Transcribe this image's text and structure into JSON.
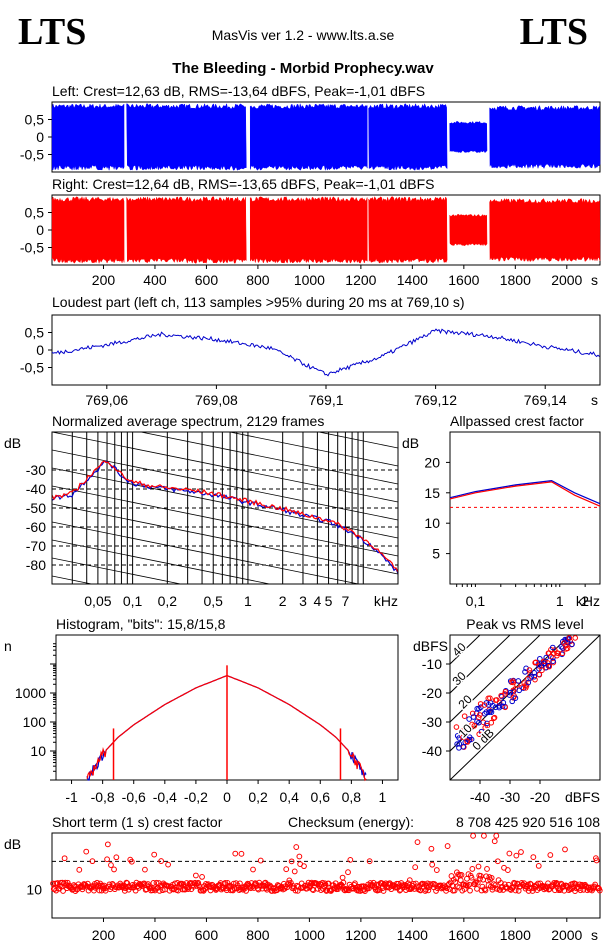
{
  "header": {
    "logo_left": "LTS",
    "logo_right": "LTS",
    "app_title": "MasVis ver 1.2 - www.lts.a.se",
    "file_title": "The Bleeding - Morbid Prophecy.wav"
  },
  "colors": {
    "left": "#0000ff",
    "right": "#ff0000",
    "overlay": "#0000cc"
  },
  "chart_data": [
    {
      "type": "area",
      "name": "left-waveform",
      "title": "Left: Crest=12,63 dB, RMS=-13,64 dBFS, Peak=-1,01 dBFS",
      "ylim": [
        -1,
        1
      ],
      "xlim": [
        0,
        2129
      ],
      "yticks": [
        0.5,
        0,
        -0.5
      ],
      "ytick_labels": [
        "0,5",
        "0",
        "-0,5"
      ],
      "envelope_segments": [
        {
          "x": [
            0,
            280
          ],
          "amp": 0.95
        },
        {
          "x": [
            290,
            755
          ],
          "amp": 0.95
        },
        {
          "x": [
            770,
            1225
          ],
          "amp": 0.95
        },
        {
          "x": [
            1230,
            1535
          ],
          "amp": 0.95
        },
        {
          "x": [
            1545,
            1690
          ],
          "amp": 0.45
        },
        {
          "x": [
            1700,
            2129
          ],
          "amp": 0.9
        }
      ]
    },
    {
      "type": "area",
      "name": "right-waveform",
      "title": "Right: Crest=12,64 dB, RMS=-13,65 dBFS, Peak=-1,01 dBFS",
      "ylim": [
        -1,
        1
      ],
      "xlim": [
        0,
        2129
      ],
      "yticks": [
        0.5,
        0,
        -0.5
      ],
      "ytick_labels": [
        "0,5",
        "0",
        "-0,5"
      ],
      "xticks": [
        200,
        400,
        600,
        800,
        1000,
        1200,
        1400,
        1600,
        1800,
        2000
      ],
      "xunit": "s",
      "envelope_segments": [
        {
          "x": [
            0,
            280
          ],
          "amp": 0.95
        },
        {
          "x": [
            290,
            755
          ],
          "amp": 0.95
        },
        {
          "x": [
            770,
            1225
          ],
          "amp": 0.95
        },
        {
          "x": [
            1230,
            1535
          ],
          "amp": 0.95
        },
        {
          "x": [
            1545,
            1690
          ],
          "amp": 0.45
        },
        {
          "x": [
            1700,
            2129
          ],
          "amp": 0.9
        }
      ]
    },
    {
      "type": "line",
      "name": "loudest-part",
      "title": "Loudest part (left  ch, 113 samples >95% during 20 ms at 769,10 s)",
      "xlim": [
        769.05,
        769.15
      ],
      "ylim": [
        -1,
        1
      ],
      "yticks": [
        0.5,
        0,
        -0.5
      ],
      "ytick_labels": [
        "0,5",
        "0",
        "-0,5"
      ],
      "xticks": [
        769.06,
        769.08,
        769.1,
        769.12,
        769.14
      ],
      "xtick_labels": [
        "769,06",
        "769,08",
        "769,1",
        "769,12",
        "769,14"
      ],
      "xunit": "s",
      "x": [
        769.05,
        769.06,
        769.07,
        769.08,
        769.09,
        769.1,
        769.11,
        769.12,
        769.13,
        769.14,
        769.15
      ],
      "y": [
        -0.1,
        0.15,
        0.45,
        0.3,
        0.05,
        -0.7,
        -0.2,
        0.55,
        0.4,
        0.1,
        -0.15
      ]
    },
    {
      "type": "line",
      "name": "average-spectrum",
      "title": "Normalized average spectrum, 2129 frames",
      "ylabel": "dB",
      "xunit": "kHz",
      "xscale": "log",
      "xlim": [
        0.02,
        20
      ],
      "ylim": [
        -90,
        -10
      ],
      "yticks": [
        -30,
        -40,
        -50,
        -60,
        -70,
        -80
      ],
      "xtick_labels": [
        "0,05",
        "0,1",
        "0,2",
        "0,5",
        "1",
        "2",
        "3",
        "4",
        "5",
        "7"
      ],
      "xticks": [
        0.05,
        0.1,
        0.2,
        0.5,
        1,
        2,
        3,
        4,
        5,
        7
      ],
      "x": [
        0.02,
        0.03,
        0.04,
        0.06,
        0.08,
        0.1,
        0.15,
        0.2,
        0.3,
        0.5,
        1,
        2,
        3,
        5,
        8,
        12,
        20
      ],
      "y": [
        -45,
        -43,
        -35,
        -25,
        -33,
        -37,
        -39,
        -40,
        -41,
        -43,
        -47,
        -51,
        -54,
        -57,
        -63,
        -70,
        -84
      ]
    },
    {
      "type": "line",
      "name": "allpassed-crest-factor",
      "title": "Allpassed crest factor",
      "ylabel": "dB",
      "xunit": "kHz",
      "xscale": "log",
      "xlim": [
        0.05,
        3
      ],
      "ylim": [
        0,
        25
      ],
      "yticks": [
        20,
        15,
        10,
        5
      ],
      "xticks": [
        0.1,
        1,
        2
      ],
      "xtick_labels": [
        "0,1",
        "1",
        "2"
      ],
      "reference_line": 12.6,
      "series": [
        {
          "name": "",
          "x": [
            0.05,
            0.1,
            0.3,
            0.8,
            1.5,
            3
          ],
          "y": [
            14.2,
            15.2,
            16.3,
            17.0,
            15.0,
            13.2
          ]
        },
        {
          "name": "",
          "x": [
            0.05,
            0.1,
            0.3,
            0.8,
            1.5,
            3
          ],
          "y": [
            14.0,
            15.0,
            16.1,
            16.8,
            14.6,
            12.8
          ]
        }
      ]
    },
    {
      "type": "line",
      "name": "histogram",
      "title": "Histogram, \"bits\": 15,8/15,8",
      "ylabel": "n",
      "yscale": "log",
      "xlim": [
        -1.1,
        1.1
      ],
      "ylim": [
        1,
        100000
      ],
      "yticks": [
        1000,
        100,
        10
      ],
      "xticks": [
        -1,
        -0.8,
        -0.6,
        -0.4,
        -0.2,
        0,
        0.2,
        0.4,
        0.6,
        0.8,
        1
      ],
      "xtick_labels": [
        "-1",
        "-0,8",
        "-0,6",
        "-0,4",
        "-0,2",
        "0",
        "0,2",
        "0,4",
        "0,6",
        "0,8",
        "1"
      ],
      "x": [
        -0.9,
        -0.85,
        -0.8,
        -0.7,
        -0.6,
        -0.4,
        -0.2,
        0,
        0.2,
        0.4,
        0.6,
        0.7,
        0.8,
        0.85,
        0.9
      ],
      "y": [
        1,
        3,
        8,
        30,
        80,
        400,
        1500,
        4000,
        1500,
        400,
        80,
        30,
        8,
        3,
        1
      ]
    },
    {
      "type": "scatter",
      "name": "peak-vs-rms",
      "title": "Peak vs RMS level",
      "ylabel": "dBFS",
      "xlabel": "dBFS",
      "xlim": [
        -50,
        0
      ],
      "ylim": [
        -50,
        0
      ],
      "xticks": [
        -40,
        -30,
        -20
      ],
      "yticks": [
        -10,
        -20,
        -30,
        -40
      ],
      "diagonal_labels": [
        "40",
        "30",
        "20",
        "10",
        "0 dB"
      ],
      "x": [
        -45,
        -40,
        -35,
        -30,
        -28,
        -25,
        -22,
        -20,
        -18,
        -16,
        -14,
        -12
      ],
      "y": [
        -35,
        -30,
        -26,
        -22,
        -18,
        -16,
        -12,
        -10,
        -8,
        -6,
        -5,
        -3
      ]
    },
    {
      "type": "scatter",
      "name": "short-term-crest",
      "title": "Short term (1 s) crest factor",
      "checksum_label": "Checksum (energy):",
      "checksum_value": "8 708 425 920 516 108",
      "ylabel": "dB",
      "ylim": [
        0,
        30
      ],
      "yticks": [
        10
      ],
      "reference_line": 20,
      "xlim": [
        0,
        2129
      ],
      "xticks": [
        200,
        400,
        600,
        800,
        1000,
        1200,
        1400,
        1600,
        1800,
        2000
      ],
      "xunit": "s",
      "baseline": 11
    }
  ]
}
